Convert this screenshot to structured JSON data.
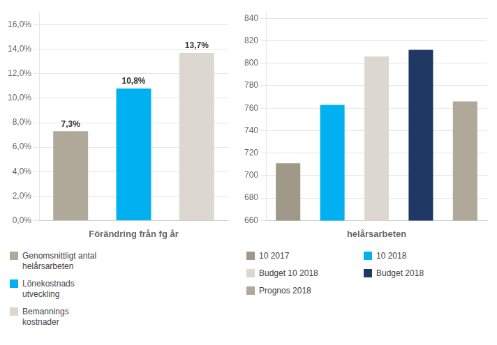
{
  "chart_data": [
    {
      "type": "bar",
      "categories": [
        "Genomsnittligt antal\nhelårsarbeten",
        "Lönekostnads\nutveckling",
        "Bemannings\nkostnader"
      ],
      "values": [
        7.3,
        10.8,
        13.7
      ],
      "value_labels": [
        "7,3%",
        "10,8%",
        "13,7%"
      ],
      "data_labels": true,
      "colors": [
        "#b0a898",
        "#00b0f0",
        "#ddd8cf"
      ],
      "xlabel": "Förändring från fg år",
      "ylim": [
        0,
        17
      ],
      "yticks": [
        {
          "value": 0,
          "label": "0,0%"
        },
        {
          "value": 2,
          "label": "2,0%"
        },
        {
          "value": 4,
          "label": "4,0%"
        },
        {
          "value": 6,
          "label": "6,0%"
        },
        {
          "value": 8,
          "label": "8,0%"
        },
        {
          "value": 10,
          "label": "10,0%"
        },
        {
          "value": 12,
          "label": "12,0%"
        },
        {
          "value": 14,
          "label": "14,0%"
        },
        {
          "value": 16,
          "label": "16,0%"
        }
      ],
      "grid": true,
      "legend": "bottom",
      "tick_labels": "y"
    },
    {
      "type": "bar",
      "categories": [
        "10 2017",
        "10 2018",
        "Budget 10 2018",
        "Budget 2018",
        "Prognos 2018"
      ],
      "values": [
        711,
        763,
        806,
        812,
        766
      ],
      "colors": [
        "#a09888",
        "#00b0f0",
        "#ddd8cf",
        "#1f3864",
        "#b0a898"
      ],
      "xlabel": "helårsarbeten",
      "ylim": [
        660,
        845
      ],
      "yticks": [
        660,
        680,
        700,
        720,
        740,
        760,
        780,
        800,
        820,
        840
      ],
      "grid": true,
      "legend": "bottom",
      "tick_labels": "y"
    }
  ]
}
